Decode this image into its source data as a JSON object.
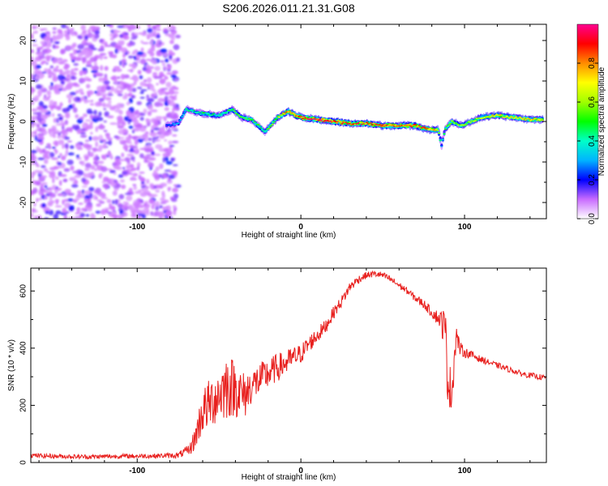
{
  "title": "S206.2026.011.21.31.G08",
  "chart_data": [
    {
      "type": "heatmap",
      "title": "S206.2026.011.21.31.G08",
      "xlabel": "Height of straight line (km)",
      "ylabel": "Frequency (Hz)",
      "xlim": [
        -165,
        150
      ],
      "ylim": [
        -24,
        24
      ],
      "xticks": [
        -100,
        0,
        100
      ],
      "xtick_labels": [
        "-100",
        "0",
        "100"
      ],
      "yticks": [
        -20,
        -10,
        0,
        10,
        20
      ],
      "ytick_labels": [
        "-20",
        "-10",
        "0",
        "10",
        "20"
      ],
      "noise_region_x": [
        -165,
        -75
      ],
      "ridge": {
        "x": [
          -82,
          -75,
          -70,
          -60,
          -50,
          -42,
          -36,
          -30,
          -22,
          -14,
          -8,
          0,
          10,
          20,
          30,
          40,
          50,
          60,
          70,
          78,
          84,
          86,
          88,
          92,
          98,
          104,
          110,
          120,
          130,
          140,
          148
        ],
        "freq": [
          -1,
          -0.5,
          3,
          2,
          1.5,
          3,
          1,
          0.5,
          -2.5,
          1,
          2.5,
          1,
          0.5,
          0,
          -0.5,
          -0.5,
          -1,
          -1,
          -1,
          -2,
          -2,
          -6,
          -2,
          0,
          -1,
          0,
          1,
          1.5,
          1,
          0.5,
          0.5
        ],
        "amp": [
          0.2,
          0.3,
          0.4,
          0.45,
          0.4,
          0.5,
          0.5,
          0.5,
          0.45,
          0.6,
          0.8,
          0.85,
          0.9,
          0.9,
          0.85,
          0.85,
          0.85,
          0.85,
          0.85,
          0.8,
          0.7,
          0.3,
          0.5,
          0.55,
          0.6,
          0.6,
          0.65,
          0.7,
          0.65,
          0.7,
          0.7
        ]
      },
      "colorbar": {
        "label": "Normalized spectral amplitude",
        "range": [
          0.0,
          1.0
        ],
        "ticks": [
          0.0,
          0.2,
          0.4,
          0.6,
          0.8
        ],
        "tick_labels": [
          "0.0",
          "0.2",
          "0.4",
          "0.6",
          "0.8"
        ]
      }
    },
    {
      "type": "line",
      "xlabel": "Height of straight line (km)",
      "ylabel": "SNR (10 * v/v)",
      "xlim": [
        -165,
        150
      ],
      "ylim": [
        0,
        680
      ],
      "xticks": [
        -100,
        0,
        100
      ],
      "xtick_labels": [
        "-100",
        "0",
        "100"
      ],
      "yticks": [
        0,
        200,
        400,
        600
      ],
      "ytick_labels": [
        "0",
        "200",
        "400",
        "600"
      ],
      "series": [
        {
          "name": "SNR",
          "color": "#e8201e",
          "x": [
            -165,
            -150,
            -130,
            -110,
            -90,
            -75,
            -68,
            -65,
            -60,
            -55,
            -50,
            -45,
            -40,
            -35,
            -30,
            -25,
            -20,
            -15,
            -10,
            -5,
            0,
            5,
            10,
            15,
            20,
            25,
            30,
            35,
            40,
            45,
            50,
            55,
            60,
            65,
            70,
            75,
            80,
            85,
            88,
            90,
            92,
            94,
            95,
            97,
            100,
            105,
            110,
            115,
            120,
            125,
            130,
            135,
            140,
            145,
            150
          ],
          "y": [
            25,
            22,
            20,
            22,
            23,
            25,
            45,
            80,
            180,
            210,
            240,
            270,
            260,
            230,
            270,
            290,
            310,
            330,
            345,
            365,
            380,
            415,
            445,
            475,
            525,
            565,
            615,
            640,
            655,
            660,
            655,
            640,
            620,
            600,
            575,
            555,
            525,
            500,
            470,
            300,
            230,
            380,
            450,
            400,
            385,
            375,
            360,
            350,
            340,
            330,
            320,
            310,
            305,
            300,
            295
          ],
          "noise_amplitude": [
            8,
            8,
            8,
            8,
            8,
            10,
            20,
            40,
            80,
            90,
            100,
            120,
            100,
            90,
            60,
            60,
            55,
            50,
            45,
            40,
            35,
            30,
            28,
            25,
            22,
            20,
            18,
            15,
            12,
            12,
            12,
            12,
            12,
            12,
            14,
            16,
            18,
            30,
            80,
            120,
            60,
            60,
            40,
            25,
            18,
            14,
            12,
            10,
            10,
            10,
            10,
            10,
            10,
            10,
            10
          ]
        }
      ]
    }
  ]
}
